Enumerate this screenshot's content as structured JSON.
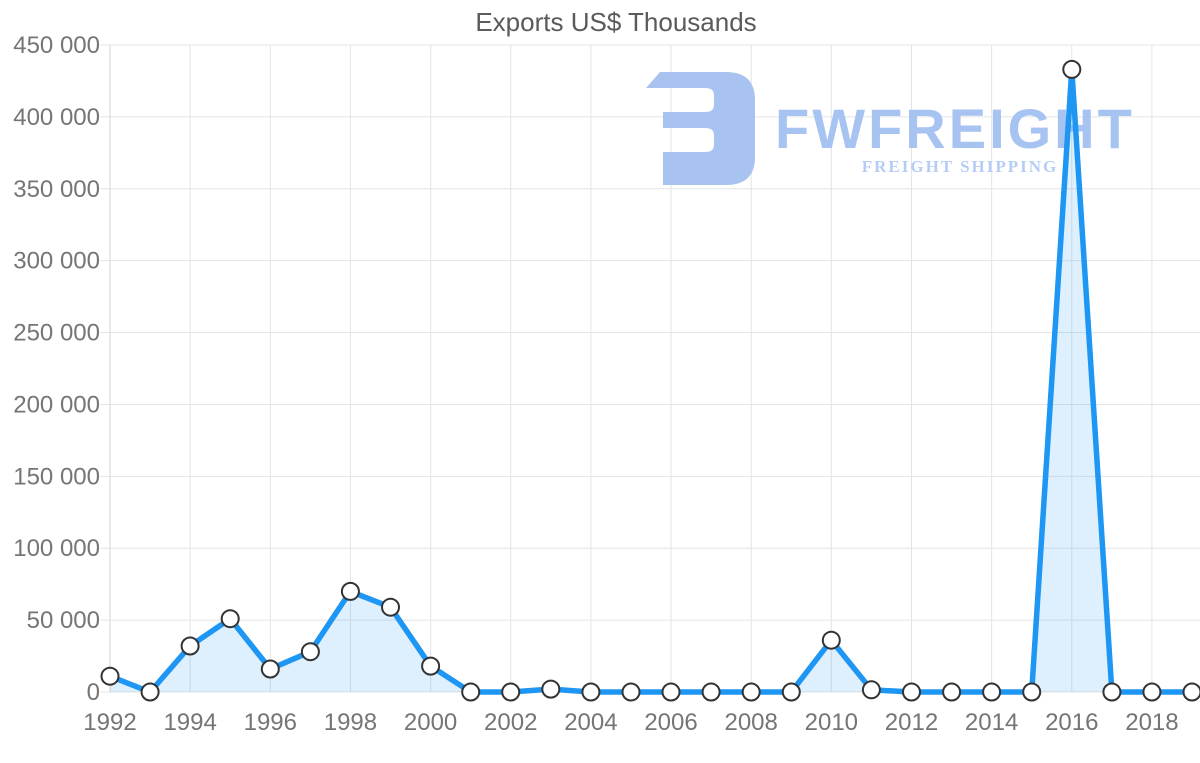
{
  "title": "Exports US$ Thousands",
  "logo": {
    "brand": "FWFREIGHT",
    "tagline": "FREIGHT SHIPPING",
    "icon": "stylized-f-mark",
    "icon_color": "#a8c3f0",
    "brand_color": "#a6c3f2",
    "tagline_color": "#b5cdf6"
  },
  "chart_data": {
    "type": "area",
    "title": "Exports US$ Thousands",
    "x": [
      1992,
      1993,
      1994,
      1995,
      1996,
      1997,
      1998,
      1999,
      2000,
      2001,
      2002,
      2003,
      2004,
      2005,
      2006,
      2007,
      2008,
      2009,
      2010,
      2011,
      2012,
      2013,
      2014,
      2015,
      2016,
      2017,
      2018,
      2019
    ],
    "values": [
      11000,
      0,
      32000,
      51000,
      16000,
      28000,
      70000,
      59000,
      18000,
      0,
      0,
      2000,
      0,
      0,
      0,
      0,
      0,
      0,
      36000,
      1500,
      0,
      0,
      0,
      0,
      433000,
      0,
      0,
      0
    ],
    "series_name": "Exports US$ Thousands",
    "xlabel": "",
    "ylabel": "",
    "xlim": [
      1992,
      2019
    ],
    "ylim": [
      0,
      450000
    ],
    "ytick_step": 50000,
    "xticks": [
      1992,
      1994,
      1996,
      1998,
      2000,
      2002,
      2004,
      2006,
      2008,
      2010,
      2012,
      2014,
      2016,
      2018
    ],
    "yticks": [
      0,
      50000,
      100000,
      150000,
      200000,
      250000,
      300000,
      350000,
      400000,
      450000
    ],
    "ytick_labels": [
      "0",
      "50 000",
      "100 000",
      "150 000",
      "200 000",
      "250 000",
      "300 000",
      "350 000",
      "400 000",
      "450 000"
    ],
    "grid": true,
    "legend": "none",
    "line_color": "#1e96f3",
    "fill_color": "rgba(33,150,243,0.15)",
    "marker_fill": "#ffffff",
    "marker_stroke": "#333333",
    "grid_color": "#e4e4e4",
    "axis_line_color": "#d6d6d6",
    "tick_label_color": "#757575",
    "title_color": "#5a5a5a"
  }
}
